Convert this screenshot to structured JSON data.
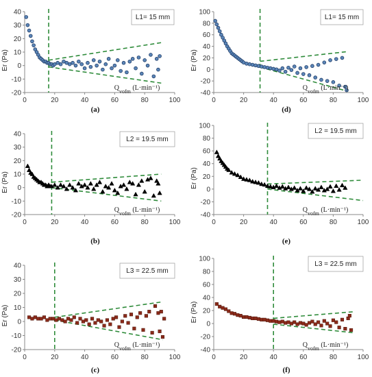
{
  "chart_data": [
    {
      "id": "a",
      "panel_label": "(a)",
      "type": "scatter",
      "legend_text": "L1= 15 mm",
      "ylabel": "Er  (Pa)",
      "xlabel": "Q<sub>vofm</sub>  (L·min⁻¹)",
      "xlim": [
        0,
        100
      ],
      "ylim": [
        -20,
        40
      ],
      "xticks": [
        0,
        20,
        40,
        60,
        80,
        100
      ],
      "yticks": [
        -20,
        -10,
        0,
        10,
        20,
        30,
        40
      ],
      "marker": "circle",
      "marker_color": "#5b86b8",
      "marker_edge": "#1f3b66",
      "vline_x": 16,
      "trend_upper": [
        [
          16,
          4
        ],
        [
          91,
          17
        ]
      ],
      "trend_lower": [
        [
          16,
          -1
        ],
        [
          91,
          -13
        ]
      ],
      "x": [
        1,
        2,
        3,
        4,
        5,
        6,
        7,
        8,
        9,
        10,
        11,
        12,
        13,
        14,
        15,
        16,
        17,
        18,
        19,
        20,
        22,
        24,
        26,
        28,
        30,
        32,
        34,
        36,
        38,
        40,
        42,
        44,
        46,
        48,
        50,
        52,
        54,
        56,
        58,
        60,
        62,
        64,
        66,
        68,
        70,
        72,
        74,
        76,
        78,
        80,
        82,
        84,
        86,
        88,
        89,
        90
      ],
      "y": [
        36,
        30,
        26,
        22,
        18,
        15,
        12,
        10,
        8,
        6,
        5,
        4,
        3,
        3,
        2,
        2,
        1,
        1,
        0,
        1,
        2,
        1,
        3,
        2,
        1,
        2,
        0,
        3,
        1,
        -2,
        2,
        -1,
        4,
        0,
        3,
        -3,
        1,
        5,
        -2,
        0,
        4,
        -4,
        2,
        -5,
        3,
        5,
        -2,
        6,
        -6,
        4,
        0,
        8,
        -8,
        5,
        -3,
        7
      ]
    },
    {
      "id": "d",
      "panel_label": "(d)",
      "type": "scatter",
      "legend_text": "L1= 15 mm",
      "ylabel": "Er  (Pa)",
      "xlabel": "Q<sub>vofm</sub>  (L·min⁻¹)",
      "xlim": [
        0,
        100
      ],
      "ylim": [
        -40,
        100
      ],
      "xticks": [
        0,
        20,
        40,
        60,
        80,
        100
      ],
      "yticks": [
        -40,
        -20,
        0,
        20,
        40,
        60,
        80,
        100
      ],
      "marker": "circle",
      "marker_color": "#5b86b8",
      "marker_edge": "#1f3b66",
      "vline_x": 31,
      "trend_upper": [
        [
          31,
          14
        ],
        [
          90,
          31
        ]
      ],
      "trend_lower": [
        [
          31,
          4
        ],
        [
          90,
          -38
        ]
      ],
      "x": [
        1,
        2,
        3,
        4,
        5,
        6,
        7,
        8,
        9,
        10,
        11,
        12,
        13,
        14,
        15,
        16,
        17,
        18,
        19,
        20,
        22,
        24,
        26,
        28,
        30,
        32,
        34,
        36,
        38,
        40,
        42,
        44,
        46,
        48,
        50,
        52,
        54,
        56,
        58,
        60,
        62,
        64,
        66,
        68,
        70,
        72,
        74,
        76,
        78,
        80,
        82,
        84,
        86,
        88,
        89
      ],
      "y": [
        84,
        78,
        72,
        66,
        60,
        55,
        50,
        45,
        40,
        36,
        32,
        28,
        26,
        24,
        22,
        20,
        18,
        16,
        14,
        12,
        10,
        9,
        8,
        7,
        6,
        5,
        4,
        3,
        2,
        1,
        0,
        -2,
        2,
        -4,
        3,
        -1,
        5,
        -6,
        2,
        -8,
        4,
        -10,
        6,
        -14,
        8,
        -18,
        12,
        -20,
        16,
        -22,
        18,
        -28,
        20,
        -30,
        -36
      ]
    },
    {
      "id": "b",
      "panel_label": "(b)",
      "type": "scatter",
      "legend_text": "L2 = 19.5 mm",
      "ylabel": "Er  (Pa)",
      "xlabel": "Q<sub>vofm</sub>  (L·min⁻¹)",
      "xlim": [
        0,
        100
      ],
      "ylim": [
        -20,
        40
      ],
      "xticks": [
        0,
        20,
        40,
        60,
        80,
        100
      ],
      "yticks": [
        -20,
        -10,
        0,
        10,
        20,
        30,
        40
      ],
      "marker": "triangle",
      "marker_color": "#000000",
      "marker_edge": "#000000",
      "vline_x": 18,
      "trend_upper": [
        [
          18,
          4
        ],
        [
          91,
          10
        ]
      ],
      "trend_lower": [
        [
          18,
          0
        ],
        [
          91,
          -10
        ]
      ],
      "x": [
        2,
        3,
        4,
        5,
        6,
        7,
        8,
        9,
        10,
        11,
        12,
        13,
        14,
        15,
        16,
        17,
        18,
        20,
        22,
        24,
        26,
        28,
        30,
        32,
        34,
        36,
        38,
        40,
        42,
        44,
        46,
        48,
        50,
        52,
        54,
        56,
        58,
        60,
        62,
        64,
        66,
        68,
        70,
        72,
        74,
        76,
        78,
        80,
        82,
        84,
        86,
        88,
        89,
        90
      ],
      "y": [
        16,
        13,
        11,
        10,
        8,
        7,
        6,
        5,
        4,
        4,
        3,
        2,
        2,
        1,
        2,
        1,
        1,
        2,
        0,
        2,
        1,
        -1,
        2,
        0,
        -2,
        3,
        1,
        2,
        0,
        3,
        -1,
        2,
        4,
        -3,
        1,
        0,
        3,
        -2,
        -4,
        1,
        2,
        -1,
        4,
        3,
        -5,
        2,
        5,
        -3,
        6,
        7,
        -6,
        5,
        3,
        -4
      ]
    },
    {
      "id": "e",
      "panel_label": "(e)",
      "type": "scatter",
      "legend_text": "L2 = 19.5 mm",
      "ylabel": "Er  (Pa)",
      "xlabel": "Q<sub>vofm</sub>  (L·min⁻¹)",
      "xlim": [
        0,
        100
      ],
      "ylim": [
        -40,
        100
      ],
      "xticks": [
        0,
        20,
        40,
        60,
        80,
        100
      ],
      "yticks": [
        -40,
        -20,
        0,
        20,
        40,
        60,
        80,
        100
      ],
      "marker": "triangle",
      "marker_color": "#000000",
      "marker_edge": "#000000",
      "vline_x": 36,
      "trend_upper": [
        [
          36,
          8
        ],
        [
          100,
          14
        ]
      ],
      "trend_lower": [
        [
          36,
          0
        ],
        [
          100,
          -18
        ]
      ],
      "x": [
        2,
        3,
        4,
        5,
        6,
        7,
        8,
        9,
        10,
        12,
        14,
        16,
        18,
        20,
        22,
        24,
        26,
        28,
        30,
        32,
        34,
        36,
        38,
        40,
        42,
        44,
        46,
        48,
        50,
        52,
        54,
        56,
        58,
        60,
        62,
        64,
        66,
        68,
        70,
        72,
        74,
        76,
        78,
        80,
        82,
        84,
        86,
        88
      ],
      "y": [
        58,
        52,
        48,
        44,
        41,
        38,
        35,
        32,
        30,
        26,
        24,
        22,
        19,
        16,
        15,
        14,
        12,
        11,
        10,
        8,
        7,
        5,
        4,
        3,
        5,
        2,
        4,
        1,
        3,
        0,
        2,
        -2,
        1,
        -3,
        2,
        0,
        -4,
        1,
        -1,
        3,
        -2,
        0,
        4,
        -3,
        5,
        -1,
        6,
        2
      ]
    },
    {
      "id": "c",
      "panel_label": "(c)",
      "type": "scatter",
      "legend_text": "L3 = 22.5 mm",
      "ylabel": "Er  (Pa)",
      "xlabel": "Q<sub>vofm</sub>  (L·min⁻¹)",
      "xlim": [
        0,
        100
      ],
      "ylim": [
        -20,
        40
      ],
      "xticks": [
        0,
        20,
        40,
        60,
        80,
        100
      ],
      "yticks": [
        -20,
        -10,
        0,
        10,
        20,
        30,
        40
      ],
      "marker": "square",
      "marker_color": "#8b2a1a",
      "marker_edge": "#4a1408",
      "vline_x": 20,
      "trend_upper": [
        [
          20,
          3
        ],
        [
          92,
          14
        ]
      ],
      "trend_lower": [
        [
          20,
          1
        ],
        [
          92,
          -13
        ]
      ],
      "x": [
        3,
        5,
        7,
        9,
        11,
        13,
        15,
        17,
        19,
        21,
        23,
        25,
        27,
        29,
        31,
        33,
        35,
        37,
        39,
        41,
        43,
        45,
        47,
        49,
        51,
        53,
        55,
        57,
        59,
        61,
        63,
        65,
        67,
        69,
        71,
        73,
        75,
        77,
        79,
        81,
        83,
        85,
        87,
        89,
        90,
        91,
        92,
        93
      ],
      "y": [
        3,
        2,
        3,
        2,
        2,
        3,
        1,
        2,
        2,
        1,
        2,
        1,
        0,
        2,
        1,
        3,
        -1,
        2,
        0,
        1,
        -2,
        2,
        -1,
        1,
        0,
        -3,
        1,
        -2,
        2,
        3,
        -4,
        0,
        4,
        -1,
        5,
        -5,
        3,
        6,
        -6,
        4,
        7,
        -8,
        11,
        6,
        -7,
        7,
        -11,
        2
      ]
    },
    {
      "id": "f",
      "panel_label": "(f)",
      "type": "scatter",
      "legend_text": "L3 = 22.5 mm",
      "ylabel": "Er  (Pa)",
      "xlabel": "Q<sub>vofm</sub>  (L·min⁻¹)",
      "xlim": [
        0,
        100
      ],
      "ylim": [
        -40,
        100
      ],
      "xticks": [
        0,
        20,
        40,
        60,
        80,
        100
      ],
      "yticks": [
        -40,
        -20,
        0,
        20,
        40,
        60,
        80,
        100
      ],
      "marker": "square",
      "marker_color": "#8b2a1a",
      "marker_edge": "#4a1408",
      "vline_x": 40,
      "trend_upper": [
        [
          40,
          8
        ],
        [
          93,
          18
        ]
      ],
      "trend_lower": [
        [
          40,
          -1
        ],
        [
          93,
          -14
        ]
      ],
      "x": [
        2,
        4,
        6,
        8,
        10,
        12,
        14,
        16,
        18,
        20,
        22,
        24,
        26,
        28,
        30,
        32,
        34,
        36,
        38,
        40,
        42,
        44,
        46,
        48,
        50,
        52,
        54,
        56,
        58,
        60,
        62,
        64,
        66,
        68,
        70,
        72,
        74,
        76,
        78,
        80,
        82,
        84,
        86,
        88,
        90,
        91,
        92
      ],
      "y": [
        30,
        26,
        24,
        22,
        19,
        16,
        15,
        13,
        12,
        10,
        10,
        9,
        8,
        8,
        7,
        6,
        6,
        5,
        4,
        4,
        3,
        2,
        3,
        1,
        2,
        0,
        2,
        -1,
        1,
        0,
        -2,
        1,
        3,
        -1,
        2,
        -3,
        4,
        0,
        -4,
        5,
        2,
        -6,
        6,
        -8,
        8,
        12,
        -10
      ]
    }
  ]
}
